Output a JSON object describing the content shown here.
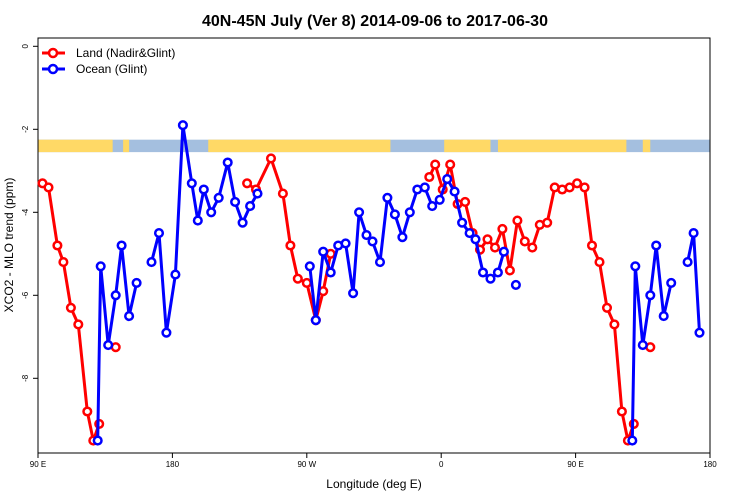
{
  "chart_data": {
    "type": "line",
    "title": "40N-45N July (Ver 8)   2014-09-06 to 2017-06-30",
    "xlabel": "Longitude (deg E)",
    "ylabel": "XCO2 - MLO trend (ppm)",
    "xlim": [
      90,
      540
    ],
    "ylim": [
      -9.8,
      0.2
    ],
    "x_ticks": [
      {
        "value": 90,
        "label": "90 E"
      },
      {
        "value": 180,
        "label": "180"
      },
      {
        "value": 270,
        "label": "90 W"
      },
      {
        "value": 360,
        "label": "0"
      },
      {
        "value": 450,
        "label": "90 E"
      },
      {
        "value": 540,
        "label": "180"
      }
    ],
    "y_ticks": [
      {
        "value": 0,
        "label": "0"
      },
      {
        "value": -2,
        "label": "-2"
      },
      {
        "value": -4,
        "label": "-4"
      },
      {
        "value": -6,
        "label": "-6"
      },
      {
        "value": -8,
        "label": "-8"
      }
    ],
    "legend_position": "top-left",
    "grid": false,
    "land_ocean_strip": {
      "y_range": [
        -2.55,
        -2.25
      ],
      "colors": {
        "land": "#FFD966",
        "ocean": "#A4BFDF"
      },
      "land_segments": [
        [
          90,
          140
        ],
        [
          147,
          151
        ],
        [
          204,
          326
        ],
        [
          362,
          393
        ],
        [
          398,
          484
        ],
        [
          495,
          500
        ]
      ]
    },
    "series": [
      {
        "name": "Land (Nadir&Glint)",
        "color": "#FF0000",
        "points": [
          [
            93,
            -3.3
          ],
          [
            97,
            -3.4
          ],
          [
            103,
            -4.8
          ],
          [
            107,
            -5.2
          ],
          [
            112,
            -6.3
          ],
          [
            117,
            -6.7
          ],
          [
            123,
            -8.8
          ],
          [
            127,
            -9.5
          ],
          [
            131,
            -9.1
          ],
          [
            null,
            null
          ],
          [
            142,
            -7.25
          ],
          [
            null,
            null
          ],
          [
            230,
            -3.3
          ],
          [
            236,
            -3.45
          ],
          [
            246,
            -2.7
          ],
          [
            254,
            -3.55
          ],
          [
            259,
            -4.8
          ],
          [
            264,
            -5.6
          ],
          [
            270,
            -5.7
          ],
          [
            276,
            -6.6
          ],
          [
            281,
            -5.9
          ],
          [
            286,
            -5.0
          ],
          [
            null,
            null
          ],
          [
            352,
            -3.15
          ],
          [
            356,
            -2.85
          ],
          [
            361,
            -3.45
          ],
          [
            366,
            -2.85
          ],
          [
            371,
            -3.8
          ],
          [
            376,
            -3.75
          ],
          [
            381,
            -4.5
          ],
          [
            386,
            -4.9
          ],
          [
            391,
            -4.65
          ],
          [
            396,
            -4.85
          ],
          [
            401,
            -4.4
          ],
          [
            406,
            -5.4
          ],
          [
            411,
            -4.2
          ],
          [
            416,
            -4.7
          ],
          [
            421,
            -4.85
          ],
          [
            426,
            -4.3
          ],
          [
            431,
            -4.25
          ],
          [
            436,
            -3.4
          ],
          [
            441,
            -3.45
          ],
          [
            446,
            -3.4
          ],
          [
            451,
            -3.3
          ],
          [
            456,
            -3.4
          ],
          [
            461,
            -4.8
          ],
          [
            466,
            -5.2
          ],
          [
            471,
            -6.3
          ],
          [
            476,
            -6.7
          ],
          [
            481,
            -8.8
          ],
          [
            485,
            -9.5
          ],
          [
            489,
            -9.1
          ],
          [
            null,
            null
          ],
          [
            500,
            -7.25
          ]
        ]
      },
      {
        "name": "Ocean (Glint)",
        "color": "#0000FF",
        "points": [
          [
            130,
            -9.5
          ],
          [
            132,
            -5.3
          ],
          [
            137,
            -7.2
          ],
          [
            142,
            -6.0
          ],
          [
            146,
            -4.8
          ],
          [
            151,
            -6.5
          ],
          [
            156,
            -5.7
          ],
          [
            null,
            null
          ],
          [
            166,
            -5.2
          ],
          [
            171,
            -4.5
          ],
          [
            176,
            -6.9
          ],
          [
            182,
            -5.5
          ],
          [
            187,
            -1.9
          ],
          [
            193,
            -3.3
          ],
          [
            197,
            -4.2
          ],
          [
            201,
            -3.45
          ],
          [
            206,
            -4.0
          ],
          [
            211,
            -3.65
          ],
          [
            217,
            -2.8
          ],
          [
            222,
            -3.75
          ],
          [
            227,
            -4.25
          ],
          [
            232,
            -3.85
          ],
          [
            237,
            -3.55
          ],
          [
            null,
            null
          ],
          [
            272,
            -5.3
          ],
          [
            276,
            -6.6
          ],
          [
            281,
            -4.95
          ],
          [
            286,
            -5.45
          ],
          [
            291,
            -4.8
          ],
          [
            296,
            -4.75
          ],
          [
            301,
            -5.95
          ],
          [
            305,
            -4.0
          ],
          [
            310,
            -4.55
          ],
          [
            314,
            -4.7
          ],
          [
            319,
            -5.2
          ],
          [
            324,
            -3.65
          ],
          [
            329,
            -4.05
          ],
          [
            334,
            -4.6
          ],
          [
            339,
            -4.0
          ],
          [
            344,
            -3.45
          ],
          [
            349,
            -3.4
          ],
          [
            354,
            -3.85
          ],
          [
            359,
            -3.7
          ],
          [
            364,
            -3.2
          ],
          [
            369,
            -3.5
          ],
          [
            374,
            -4.25
          ],
          [
            379,
            -4.5
          ],
          [
            383,
            -4.65
          ],
          [
            388,
            -5.45
          ],
          [
            393,
            -5.6
          ],
          [
            398,
            -5.45
          ],
          [
            402,
            -4.95
          ],
          [
            null,
            null
          ],
          [
            410,
            -5.75
          ],
          [
            null,
            null
          ],
          [
            488,
            -9.5
          ],
          [
            490,
            -5.3
          ],
          [
            495,
            -7.2
          ],
          [
            500,
            -6.0
          ],
          [
            504,
            -4.8
          ],
          [
            509,
            -6.5
          ],
          [
            514,
            -5.7
          ],
          [
            null,
            null
          ],
          [
            525,
            -5.2
          ],
          [
            529,
            -4.5
          ],
          [
            533,
            -6.9
          ]
        ]
      }
    ]
  }
}
